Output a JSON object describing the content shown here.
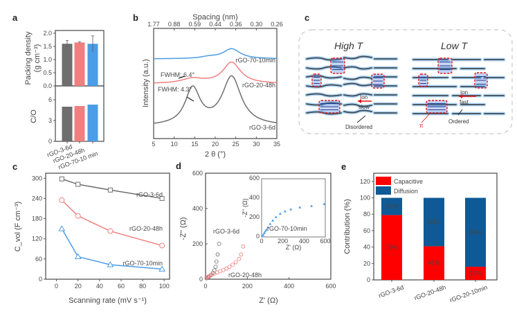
{
  "panels": {
    "a": {
      "letter": "a"
    },
    "b": {
      "letter": "b"
    },
    "c_top": {
      "letter": "c"
    },
    "c": {
      "letter": "c"
    },
    "d": {
      "letter": "d"
    },
    "e": {
      "letter": "e"
    }
  },
  "colors": {
    "gray": "#6e6e6e",
    "red": "#f07f7f",
    "blue": "#4a9de6",
    "bright_red": "#ff0000",
    "dark_blue": "#0f5a96"
  },
  "diagram": {
    "high_title": "High T",
    "low_title": "Low T",
    "ion_label": "Ion",
    "slow_label": "slow",
    "fast_label": "fast",
    "disordered_label": "Disordered",
    "ordered_label": "Ordered",
    "pi_label": "π"
  },
  "chart_data": [
    {
      "id": "a-top",
      "type": "bar",
      "categories": [
        "rGO-3-6d",
        "rGO-20-48h",
        "rGO-70-10 min"
      ],
      "values": [
        1.6,
        1.65,
        1.6
      ],
      "errors": [
        0.12,
        0.03,
        0.3
      ],
      "ylabel": "Packing density (g cm⁻³)",
      "ylabel_line1": "Packing density",
      "ylabel_line2": "(g cm⁻³)",
      "ylim": [
        0,
        2.0
      ],
      "yticks": [
        "0.0",
        "0.5",
        "1.0",
        "1.5",
        "2.0"
      ]
    },
    {
      "id": "a-bottom",
      "type": "bar",
      "categories": [
        "rGO-3-6d",
        "rGO-20-48h",
        "rGO-70-10 min"
      ],
      "values": [
        5.0,
        5.1,
        5.3
      ],
      "ylabel": "C/O",
      "ylim": [
        0,
        8
      ],
      "yticks": [
        "0",
        "3",
        "6"
      ]
    },
    {
      "id": "b",
      "type": "line",
      "xlabel": "2 θ (°)",
      "ylabel": "Intensity (a.u.)",
      "top_xlabel": "Spacing (nm)",
      "top_ticks": [
        "1.77",
        "0.88",
        "0.59",
        "0.44",
        "0.36",
        "0.30",
        "0.26"
      ],
      "xticks": [
        "5",
        "10",
        "15",
        "20",
        "25",
        "30",
        "35"
      ],
      "xlim": [
        5,
        35
      ],
      "series": [
        {
          "name": "rGO-70-10min",
          "peaks": [
            {
              "center": 24,
              "height": 0.6,
              "width": 2.5
            },
            {
              "center": 18.5,
              "height": 0.1,
              "width": 2.5
            }
          ],
          "baseline": 3.0
        },
        {
          "name": "rGO-20-48h",
          "peaks": [
            {
              "center": 24,
              "height": 1.1,
              "width": 2.6
            },
            {
              "center": 14.5,
              "height": 0.25,
              "width": 3.2
            }
          ],
          "baseline": 1.8
        },
        {
          "name": "rGO-3-6d",
          "peaks": [
            {
              "center": 24,
              "height": 2.0,
              "width": 2.8
            },
            {
              "center": 14.5,
              "height": 1.5,
              "width": 2.2
            }
          ],
          "baseline": 0.0
        }
      ],
      "annotations": [
        "FWHM: 6.4°",
        "FWHM: 4.3°"
      ]
    },
    {
      "id": "c",
      "type": "line",
      "xlabel": "Scanning rate (mV s⁻¹)",
      "ylabel": "C_vol (F cm⁻³)",
      "xlim": [
        -10,
        105
      ],
      "ylim": [
        0,
        315
      ],
      "xticks": [
        "0",
        "20",
        "40",
        "60",
        "80",
        "100"
      ],
      "yticks": [
        "0",
        "60",
        "120",
        "180",
        "240",
        "300"
      ],
      "x": [
        5,
        20,
        50,
        98
      ],
      "series": [
        {
          "name": "rGO-3-6d",
          "marker": "square",
          "values": [
            298,
            282,
            265,
            240
          ]
        },
        {
          "name": "rGO-20-48h",
          "marker": "circle",
          "values": [
            235,
            188,
            143,
            100
          ]
        },
        {
          "name": "rGO-70-10min",
          "marker": "triangle",
          "values": [
            150,
            67,
            43,
            30
          ]
        }
      ]
    },
    {
      "id": "d",
      "type": "scatter",
      "xlabel": "Z' (Ω)",
      "ylabel": "-Z'' (Ω)",
      "xlim": [
        0,
        600
      ],
      "ylim": [
        0,
        600
      ],
      "xticks": [
        "0",
        "200",
        "400",
        "600"
      ],
      "yticks": [
        "0",
        "200",
        "400",
        "600"
      ],
      "series": [
        {
          "name": "rGO-3-6d",
          "points": [
            [
              5,
              5
            ],
            [
              15,
              12
            ],
            [
              25,
              22
            ],
            [
              35,
              35
            ],
            [
              42,
              50
            ],
            [
              48,
              70
            ],
            [
              52,
              100
            ],
            [
              58,
              140
            ],
            [
              65,
              200
            ]
          ]
        },
        {
          "name": "rGO-20-48h",
          "points": [
            [
              5,
              8
            ],
            [
              12,
              14
            ],
            [
              20,
              20
            ],
            [
              30,
              26
            ],
            [
              42,
              32
            ],
            [
              55,
              38
            ],
            [
              70,
              45
            ],
            [
              85,
              52
            ],
            [
              100,
              60
            ],
            [
              115,
              70
            ],
            [
              130,
              82
            ],
            [
              145,
              96
            ],
            [
              160,
              115
            ],
            [
              170,
              140
            ],
            [
              180,
              185
            ]
          ]
        }
      ],
      "inset": {
        "xlabel": "Z' (Ω)",
        "ylabel": "-Z'' (Ω)",
        "xlim": [
          0,
          600
        ],
        "ylim": [
          0,
          600
        ],
        "xticks": [
          "0",
          "200",
          "400",
          "600"
        ],
        "yticks": [
          "0",
          "200",
          "400",
          "600"
        ],
        "series": [
          {
            "name": "rGO-70-10min",
            "points": [
              [
                5,
                8
              ],
              [
                15,
                22
              ],
              [
                25,
                40
              ],
              [
                35,
                58
              ],
              [
                45,
                75
              ],
              [
                60,
                100
              ],
              [
                80,
                135
              ],
              [
                105,
                170
              ],
              [
                135,
                205
              ],
              [
                175,
                240
              ],
              [
                220,
                265
              ],
              [
                275,
                285
              ],
              [
                360,
                305
              ],
              [
                470,
                320
              ],
              [
                590,
                340
              ]
            ]
          }
        ]
      }
    },
    {
      "id": "e",
      "type": "bar",
      "stacked": true,
      "ylabel": "Contribution (%)",
      "ylim": [
        0,
        130
      ],
      "yticks": [
        "0",
        "20",
        "40",
        "60",
        "80",
        "100",
        "120"
      ],
      "categories": [
        "rGO-3-6d",
        "rGO-20-48h",
        "rGO-20-10min"
      ],
      "series": [
        {
          "name": "Capacitive",
          "values": [
            79,
            41,
            16
          ],
          "labels": [
            "79%",
            "41%",
            "16%"
          ]
        },
        {
          "name": "Diffusion",
          "values": [
            21,
            59,
            84
          ],
          "labels": [
            "21%",
            "59%",
            "84%"
          ]
        }
      ],
      "legend": "top-left"
    }
  ]
}
